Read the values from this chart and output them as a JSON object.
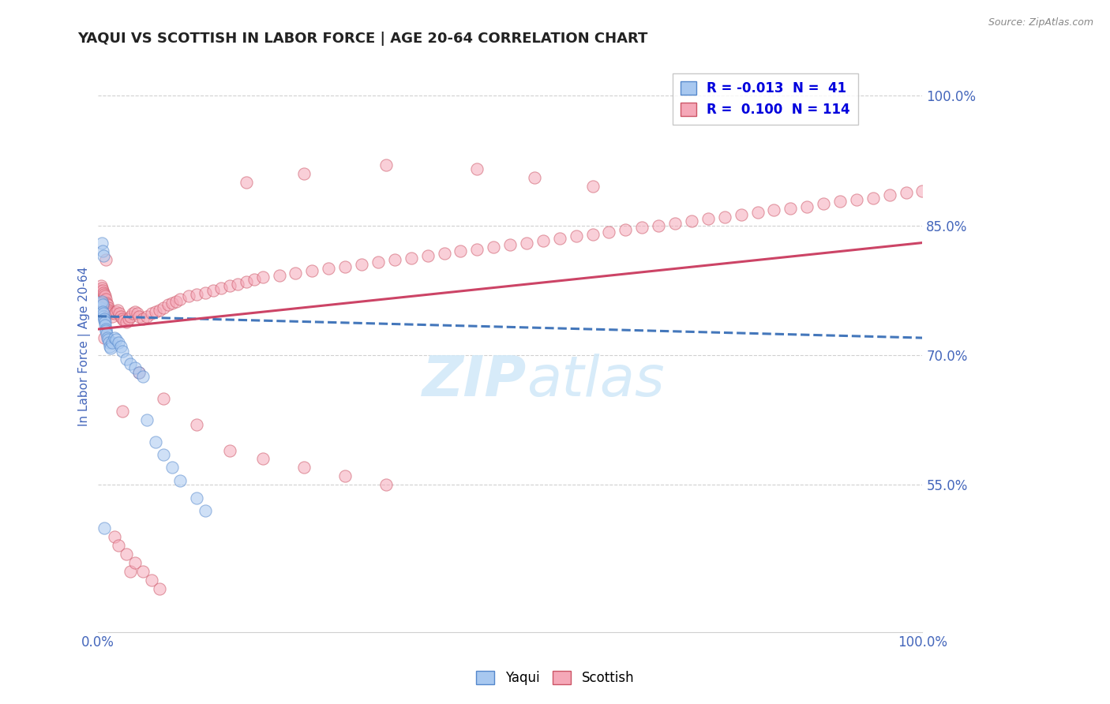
{
  "title": "YAQUI VS SCOTTISH IN LABOR FORCE | AGE 20-64 CORRELATION CHART",
  "source_text": "Source: ZipAtlas.com",
  "ylabel": "In Labor Force | Age 20-64",
  "xlim": [
    0.0,
    1.0
  ],
  "ylim": [
    0.38,
    1.04
  ],
  "yticks": [
    0.55,
    0.7,
    0.85,
    1.0
  ],
  "ytick_labels": [
    "55.0%",
    "70.0%",
    "85.0%",
    "100.0%"
  ],
  "yaqui_scatter_x": [
    0.003,
    0.004,
    0.005,
    0.006,
    0.006,
    0.007,
    0.007,
    0.008,
    0.008,
    0.009,
    0.009,
    0.01,
    0.01,
    0.011,
    0.012,
    0.013,
    0.014,
    0.015,
    0.016,
    0.018,
    0.02,
    0.022,
    0.025,
    0.028,
    0.03,
    0.035,
    0.04,
    0.045,
    0.05,
    0.055,
    0.06,
    0.07,
    0.08,
    0.09,
    0.1,
    0.12,
    0.13,
    0.005,
    0.006,
    0.007,
    0.008
  ],
  "yaqui_scatter_y": [
    0.755,
    0.76,
    0.762,
    0.758,
    0.75,
    0.745,
    0.748,
    0.74,
    0.742,
    0.738,
    0.735,
    0.73,
    0.728,
    0.725,
    0.72,
    0.718,
    0.715,
    0.71,
    0.708,
    0.715,
    0.72,
    0.718,
    0.715,
    0.71,
    0.705,
    0.695,
    0.69,
    0.685,
    0.68,
    0.675,
    0.625,
    0.6,
    0.585,
    0.57,
    0.555,
    0.535,
    0.52,
    0.83,
    0.82,
    0.815,
    0.5
  ],
  "scottish_scatter_x": [
    0.003,
    0.004,
    0.005,
    0.006,
    0.007,
    0.008,
    0.009,
    0.01,
    0.011,
    0.012,
    0.013,
    0.014,
    0.015,
    0.016,
    0.018,
    0.02,
    0.022,
    0.024,
    0.026,
    0.028,
    0.03,
    0.032,
    0.035,
    0.038,
    0.04,
    0.042,
    0.045,
    0.048,
    0.05,
    0.055,
    0.06,
    0.065,
    0.07,
    0.075,
    0.08,
    0.085,
    0.09,
    0.095,
    0.1,
    0.11,
    0.12,
    0.13,
    0.14,
    0.15,
    0.16,
    0.17,
    0.18,
    0.19,
    0.2,
    0.22,
    0.24,
    0.26,
    0.28,
    0.3,
    0.32,
    0.34,
    0.36,
    0.38,
    0.4,
    0.42,
    0.44,
    0.46,
    0.48,
    0.5,
    0.52,
    0.54,
    0.56,
    0.58,
    0.6,
    0.62,
    0.64,
    0.66,
    0.68,
    0.7,
    0.72,
    0.74,
    0.76,
    0.78,
    0.8,
    0.82,
    0.84,
    0.86,
    0.88,
    0.9,
    0.92,
    0.94,
    0.96,
    0.98,
    1.0,
    0.18,
    0.25,
    0.35,
    0.46,
    0.53,
    0.6,
    0.05,
    0.08,
    0.12,
    0.16,
    0.2,
    0.25,
    0.3,
    0.35,
    0.03,
    0.04,
    0.02,
    0.025,
    0.035,
    0.045,
    0.055,
    0.065,
    0.075,
    0.01,
    0.006,
    0.008
  ],
  "scottish_scatter_y": [
    0.775,
    0.78,
    0.778,
    0.775,
    0.772,
    0.77,
    0.768,
    0.765,
    0.76,
    0.758,
    0.755,
    0.752,
    0.75,
    0.748,
    0.745,
    0.748,
    0.75,
    0.752,
    0.748,
    0.745,
    0.742,
    0.74,
    0.738,
    0.742,
    0.745,
    0.748,
    0.75,
    0.748,
    0.745,
    0.742,
    0.745,
    0.748,
    0.75,
    0.752,
    0.755,
    0.758,
    0.76,
    0.762,
    0.765,
    0.768,
    0.77,
    0.772,
    0.775,
    0.778,
    0.78,
    0.782,
    0.785,
    0.788,
    0.79,
    0.792,
    0.795,
    0.798,
    0.8,
    0.802,
    0.805,
    0.808,
    0.81,
    0.812,
    0.815,
    0.818,
    0.82,
    0.822,
    0.825,
    0.828,
    0.83,
    0.832,
    0.835,
    0.838,
    0.84,
    0.842,
    0.845,
    0.848,
    0.85,
    0.852,
    0.855,
    0.858,
    0.86,
    0.862,
    0.865,
    0.868,
    0.87,
    0.872,
    0.875,
    0.878,
    0.88,
    0.882,
    0.885,
    0.888,
    0.89,
    0.9,
    0.91,
    0.92,
    0.915,
    0.905,
    0.895,
    0.68,
    0.65,
    0.62,
    0.59,
    0.58,
    0.57,
    0.56,
    0.55,
    0.635,
    0.45,
    0.49,
    0.48,
    0.47,
    0.46,
    0.45,
    0.44,
    0.43,
    0.81,
    0.76,
    0.72
  ],
  "yaqui_trend_x": [
    0.0,
    1.0
  ],
  "yaqui_trend_y": [
    0.745,
    0.72
  ],
  "scottish_trend_x": [
    0.0,
    1.0
  ],
  "scottish_trend_y": [
    0.73,
    0.83
  ],
  "scatter_size": 120,
  "scatter_alpha": 0.55,
  "yaqui_color": "#a8c8f0",
  "scottish_color": "#f5a8b8",
  "yaqui_edge": "#5588cc",
  "scottish_edge": "#cc5566",
  "trend_yaqui_color": "#4477bb",
  "trend_scottish_color": "#cc4466",
  "grid_color": "#d0d0d0",
  "watermark_color": "#d0e8f8",
  "background_color": "#ffffff",
  "title_color": "#222222",
  "tick_label_color": "#4466bb",
  "legend_r_color": "#0000dd",
  "source_color": "#888888"
}
